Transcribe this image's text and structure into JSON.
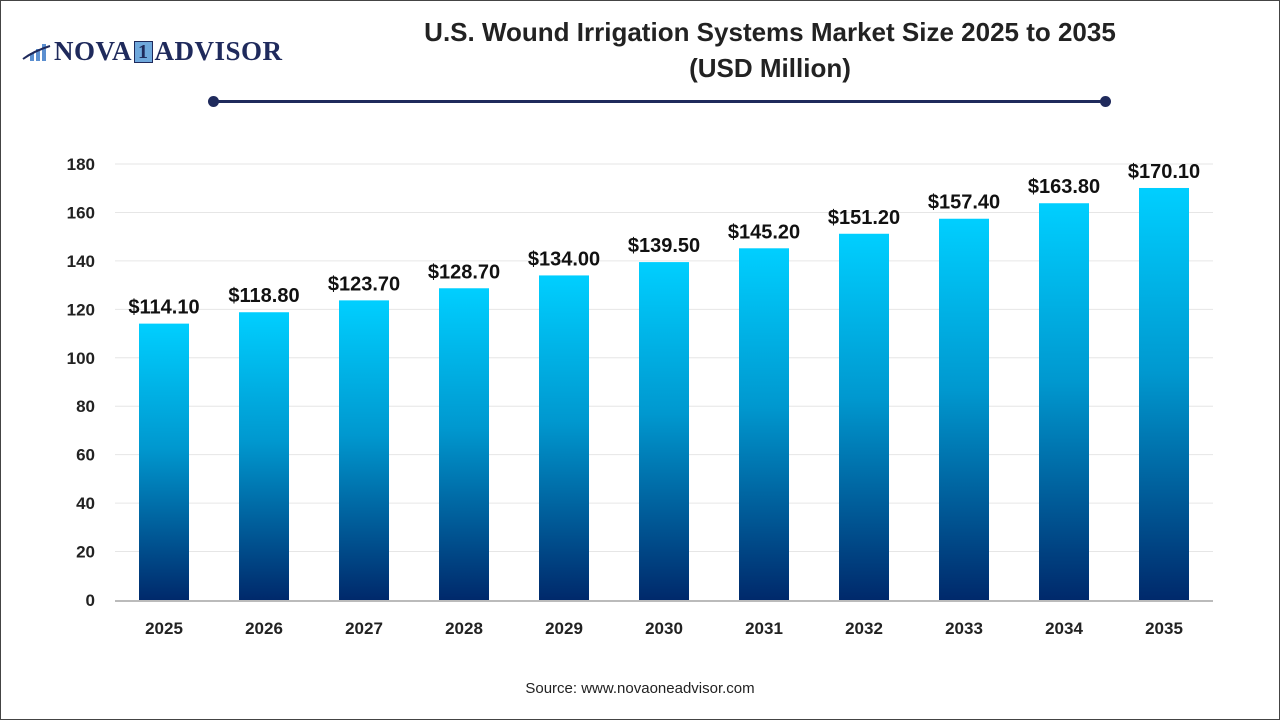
{
  "logo": {
    "text_left": "NOVA",
    "text_num": "1",
    "text_right": "ADVISOR"
  },
  "chart_data": {
    "type": "bar",
    "title": "U.S. Wound Irrigation Systems Market Size 2025 to 2035",
    "subtitle": "(USD Million)",
    "categories": [
      "2025",
      "2026",
      "2027",
      "2028",
      "2029",
      "2030",
      "2031",
      "2032",
      "2033",
      "2034",
      "2035"
    ],
    "values": [
      114.1,
      118.8,
      123.7,
      128.7,
      134.0,
      139.5,
      145.2,
      151.2,
      157.4,
      163.8,
      170.1
    ],
    "data_labels": [
      "$114.10",
      "$118.80",
      "$123.70",
      "$128.70",
      "$134.00",
      "$139.50",
      "$145.20",
      "$151.20",
      "$157.40",
      "$163.80",
      "$170.10"
    ],
    "xlabel": "",
    "ylabel": "",
    "ylim": [
      0,
      180
    ],
    "yticks": [
      0,
      20,
      40,
      60,
      80,
      100,
      120,
      140,
      160,
      180
    ],
    "grid": true,
    "legend": "none",
    "bar_gradient": {
      "top": "#00CFFF",
      "bottom": "#00296B"
    }
  },
  "source": "Source: www.novaoneadvisor.com"
}
